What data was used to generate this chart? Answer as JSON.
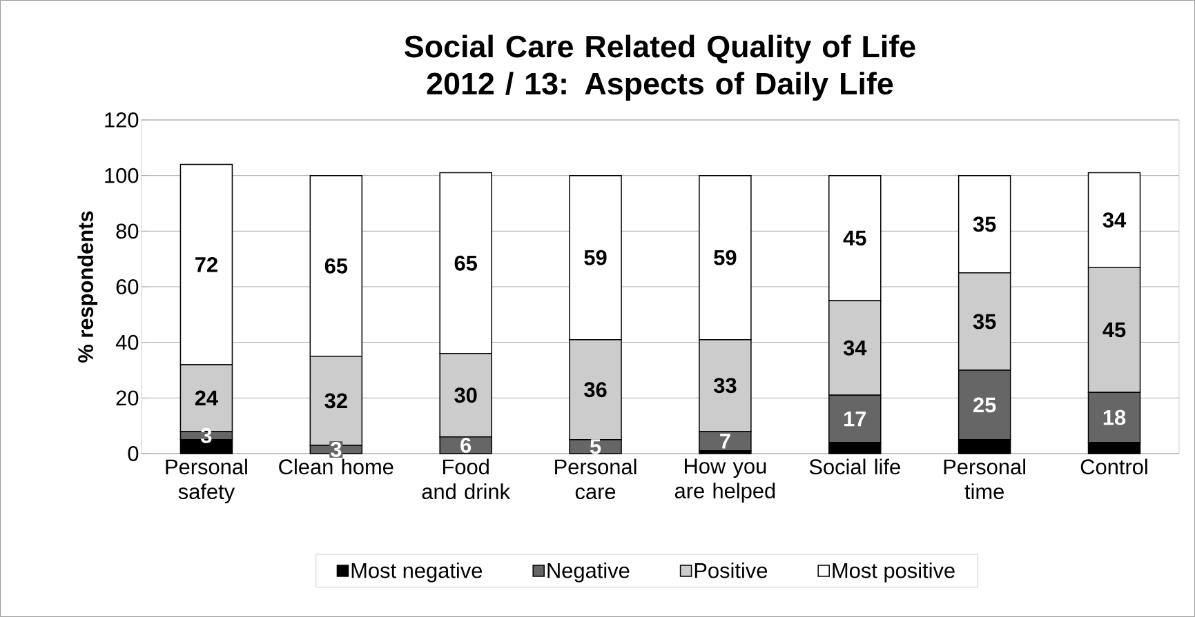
{
  "chart_data": {
    "type": "bar",
    "stacked": true,
    "title": "Social Care Related Quality of Life 2012 / 13: Aspects of Daily Life",
    "ylabel": "% respondents",
    "categories": [
      "Personal safety",
      "Clean home",
      "Food and drink",
      "Personal care",
      "How you are helped",
      "Social life",
      "Personal time",
      "Control"
    ],
    "series": [
      {
        "name": "Most negative",
        "color": "#000000",
        "values": [
          5,
          0,
          0,
          0,
          1,
          4,
          5,
          4
        ],
        "value_labels": [
          null,
          null,
          null,
          null,
          null,
          null,
          null,
          null
        ]
      },
      {
        "name": "Negative",
        "color": "#666666",
        "values": [
          3,
          3,
          6,
          5,
          7,
          17,
          25,
          18
        ],
        "value_labels": [
          "3",
          "3",
          "6",
          "5",
          "7",
          "17",
          "25",
          "18"
        ]
      },
      {
        "name": "Positive",
        "color": "#cccccc",
        "values": [
          24,
          32,
          30,
          36,
          33,
          34,
          35,
          45
        ],
        "value_labels": [
          "24",
          "32",
          "30",
          "36",
          "33",
          "34",
          "35",
          "45"
        ]
      },
      {
        "name": "Most positive",
        "color": "#ffffff",
        "values": [
          72,
          65,
          65,
          59,
          59,
          45,
          35,
          34
        ],
        "value_labels": [
          "72",
          "65",
          "65",
          "59",
          "59",
          "45",
          "35",
          "34"
        ]
      }
    ],
    "ylim": [
      0,
      120
    ],
    "yticks": [
      0,
      20,
      40,
      60,
      80,
      100,
      120
    ],
    "grid": "y",
    "legend": "bottom"
  }
}
